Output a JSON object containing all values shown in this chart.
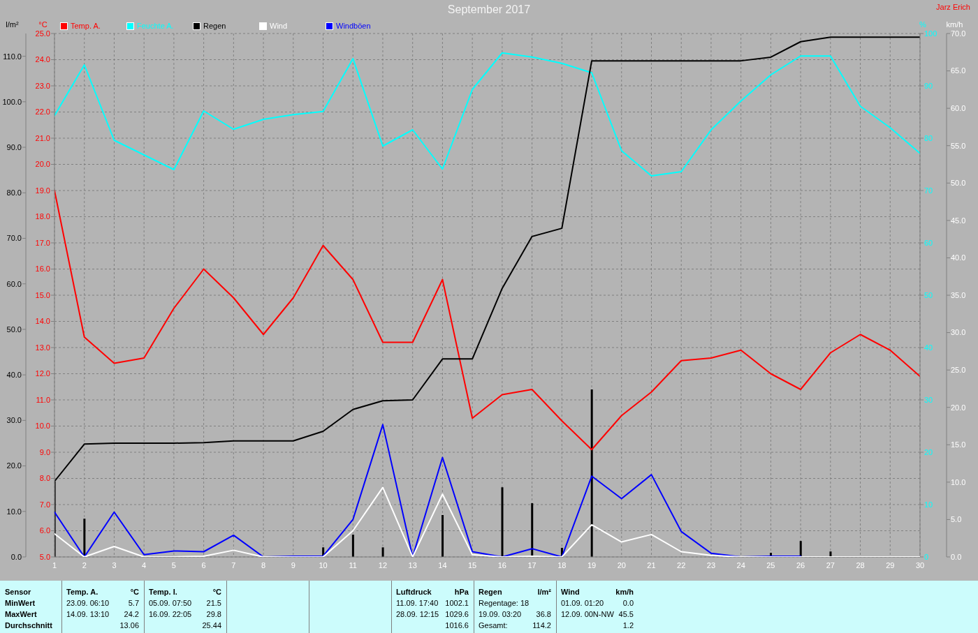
{
  "chart_data": [
    {
      "type": "line",
      "title": "September 2017",
      "annotations": [
        "Jarz Erich",
        "Sensor",
        "MinWert",
        "MaxWert",
        "Durchschnitt",
        "Temp. A.",
        "°C",
        "23.09. 06:10",
        "5.7",
        "14.09. 13:10",
        "24.2",
        "13.06",
        "Temp. I.",
        "°C",
        "05.09. 07:50",
        "21.5",
        "16.09. 22:05",
        "29.8",
        "25.44",
        "Luftdruck",
        "hPa",
        "11.09. 17:40",
        "1002.1",
        "28.09. 12:15",
        "1029.6",
        "1016.6",
        "Regen",
        "l/m²",
        "Regentage: 18",
        "19.09. 03:20",
        "36.8",
        "Gesamt:",
        "114.2",
        "Wind",
        "km/h",
        "01.09. 01:20",
        "0.0",
        "12.09. 00N-NW",
        "45.5",
        "1.2"
      ],
      "x": [
        1,
        2,
        3,
        4,
        5,
        6,
        7,
        8,
        9,
        10,
        11,
        12,
        13,
        14,
        15,
        16,
        17,
        18,
        19,
        20,
        21,
        22,
        23,
        24,
        25,
        26,
        27,
        28,
        29,
        30
      ],
      "xlim": [
        1,
        30
      ],
      "xticks": [
        1,
        2,
        3,
        4,
        5,
        6,
        7,
        8,
        9,
        10,
        11,
        12,
        13,
        14,
        15,
        16,
        17,
        18,
        19,
        20,
        21,
        22,
        23,
        24,
        25,
        26,
        27,
        28,
        29,
        30
      ],
      "ylabel": "°C",
      "ylim": [
        5,
        25
      ],
      "yticks": [
        {
          "value": 5,
          "label": "5.0"
        },
        {
          "value": 6,
          "label": "6.0"
        },
        {
          "value": 7,
          "label": "7.0"
        },
        {
          "value": 8,
          "label": "8.0"
        },
        {
          "value": 9,
          "label": "9.0"
        },
        {
          "value": 10,
          "label": "10.0"
        },
        {
          "value": 11,
          "label": "11.0"
        },
        {
          "value": 12,
          "label": "12.0"
        },
        {
          "value": 13,
          "label": "13.0"
        },
        {
          "value": 14,
          "label": "14.0"
        },
        {
          "value": 15,
          "label": "15.0"
        },
        {
          "value": 16,
          "label": "16.0"
        },
        {
          "value": 17,
          "label": "17.0"
        },
        {
          "value": 18,
          "label": "18.0"
        },
        {
          "value": 19,
          "label": "19.0"
        },
        {
          "value": 20,
          "label": "20.0"
        },
        {
          "value": 21,
          "label": "21.0"
        },
        {
          "value": 22,
          "label": "22.0"
        },
        {
          "value": 23,
          "label": "23.0"
        },
        {
          "value": 24,
          "label": "24.0"
        },
        {
          "value": 25,
          "label": "25.0"
        }
      ],
      "y2label": "l/m²",
      "y2lim": [
        0,
        115
      ],
      "y2ticks": [
        {
          "value": 0,
          "label": "0.0"
        },
        {
          "value": 10,
          "label": "10.0"
        },
        {
          "value": 20,
          "label": "20.0"
        },
        {
          "value": 30,
          "label": "30.0"
        },
        {
          "value": 40,
          "label": "40.0"
        },
        {
          "value": 50,
          "label": "50.0"
        },
        {
          "value": 60,
          "label": "60.0"
        },
        {
          "value": 70,
          "label": "70.0"
        },
        {
          "value": 80,
          "label": "80.0"
        },
        {
          "value": 90,
          "label": "90.0"
        },
        {
          "value": 100,
          "label": "100.0"
        },
        {
          "value": 110,
          "label": "110.0"
        }
      ],
      "y3label": "%",
      "y3lim": [
        0,
        100
      ],
      "y3ticks": [
        0,
        10,
        20,
        30,
        40,
        50,
        60,
        70,
        80,
        90,
        100
      ],
      "series": [
        {
          "name": "Temp. A.",
          "color": "#ff0000",
          "values": [
            19.0,
            13.4,
            12.4,
            12.6,
            14.5,
            16.0,
            14.9,
            13.5,
            14.9,
            16.9,
            15.6,
            13.2,
            13.2,
            15.6,
            10.3,
            11.2,
            11.4,
            10.2,
            9.1,
            10.4,
            11.3,
            12.5,
            12.6,
            12.9,
            12.0,
            11.4,
            12.8,
            13.5,
            12.9,
            11.9
          ]
        },
        {
          "name": "Feuchte A.",
          "color": "#00ffff",
          "axis": "y3",
          "values": [
            84.3,
            94.0,
            79.6,
            76.8,
            74.0,
            85.2,
            81.7,
            83.6,
            84.5,
            85.1,
            95.2,
            78.5,
            81.6,
            74.1,
            89.3,
            96.3,
            95.5,
            94.3,
            92.5,
            77.6,
            72.8,
            73.6,
            81.6,
            87.1,
            92.1,
            95.7,
            95.7,
            86.1,
            82.0,
            77.1
          ]
        },
        {
          "name": "Regen",
          "color": "#000000",
          "axis": "y2",
          "values": [
            16.6,
            24.8,
            25.0,
            25.0,
            25.0,
            25.1,
            25.5,
            25.5,
            25.5,
            27.6,
            32.4,
            34.3,
            34.5,
            43.5,
            43.5,
            59.0,
            70.4,
            72.2,
            109.0,
            109.0,
            109.0,
            109.0,
            109.0,
            109.0,
            109.8,
            113.2,
            114.2,
            114.2,
            114.2,
            114.2
          ]
        },
        {
          "type": "bar",
          "color": "#000000",
          "axis": "y2",
          "values": [
            16.6,
            8.4,
            null,
            null,
            null,
            null,
            null,
            null,
            null,
            2.1,
            4.9,
            2.1,
            null,
            9.2,
            null,
            15.3,
            11.8,
            2.0,
            36.8,
            null,
            null,
            null,
            null,
            null,
            0.9,
            3.5,
            1.2,
            null,
            null,
            null
          ]
        }
      ],
      "grid": true,
      "legend": "top left",
      "marker": "none"
    },
    {
      "type": "line",
      "tick_labels": "y",
      "x": [
        1,
        2,
        3,
        4,
        5,
        6,
        7,
        8,
        9,
        10,
        11,
        12,
        13,
        14,
        15,
        16,
        17,
        18,
        19,
        20,
        21,
        22,
        23,
        24,
        25,
        26,
        27,
        28,
        29,
        30
      ],
      "xlim": [
        1,
        30
      ],
      "ylabel": "km/h",
      "ylim": [
        0,
        70
      ],
      "yticks": [
        {
          "value": 0,
          "label": "0.0"
        },
        {
          "value": 5,
          "label": "5.0"
        },
        {
          "value": 10,
          "label": "10.0"
        },
        {
          "value": 15,
          "label": "15.0"
        },
        {
          "value": 20,
          "label": "20.0"
        },
        {
          "value": 25,
          "label": "25.0"
        },
        {
          "value": 30,
          "label": "30.0"
        },
        {
          "value": 35,
          "label": "35.0"
        },
        {
          "value": 40,
          "label": "40.0"
        },
        {
          "value": 45,
          "label": "45.0"
        },
        {
          "value": 50,
          "label": "50.0"
        },
        {
          "value": 55,
          "label": "55.0"
        },
        {
          "value": 60,
          "label": "60.0"
        },
        {
          "value": 65,
          "label": "65.0"
        },
        {
          "value": 70,
          "label": "70.0"
        }
      ],
      "series": [
        {
          "name": "Wind",
          "color": "#ffffff",
          "values": [
            3.1,
            0,
            1.4,
            0,
            0,
            0.1,
            0.9,
            0,
            0,
            0,
            3.5,
            9.3,
            0,
            8.4,
            0.3,
            0,
            0.1,
            0,
            4.3,
            2.0,
            3.0,
            0.7,
            0.2,
            0,
            0,
            0,
            0,
            0,
            0,
            0
          ]
        },
        {
          "name": "Windböen",
          "color": "#0000ff",
          "values": [
            6.0,
            0,
            6.0,
            0.3,
            0.8,
            0.7,
            2.9,
            0,
            0.1,
            0.1,
            5.0,
            17.7,
            0,
            13.3,
            0.7,
            0,
            1.1,
            0,
            10.8,
            7.8,
            11.0,
            3.4,
            0.5,
            0,
            0.1,
            0.1,
            null,
            null,
            null,
            null
          ]
        }
      ],
      "legend": "top left",
      "marker": "none"
    }
  ]
}
